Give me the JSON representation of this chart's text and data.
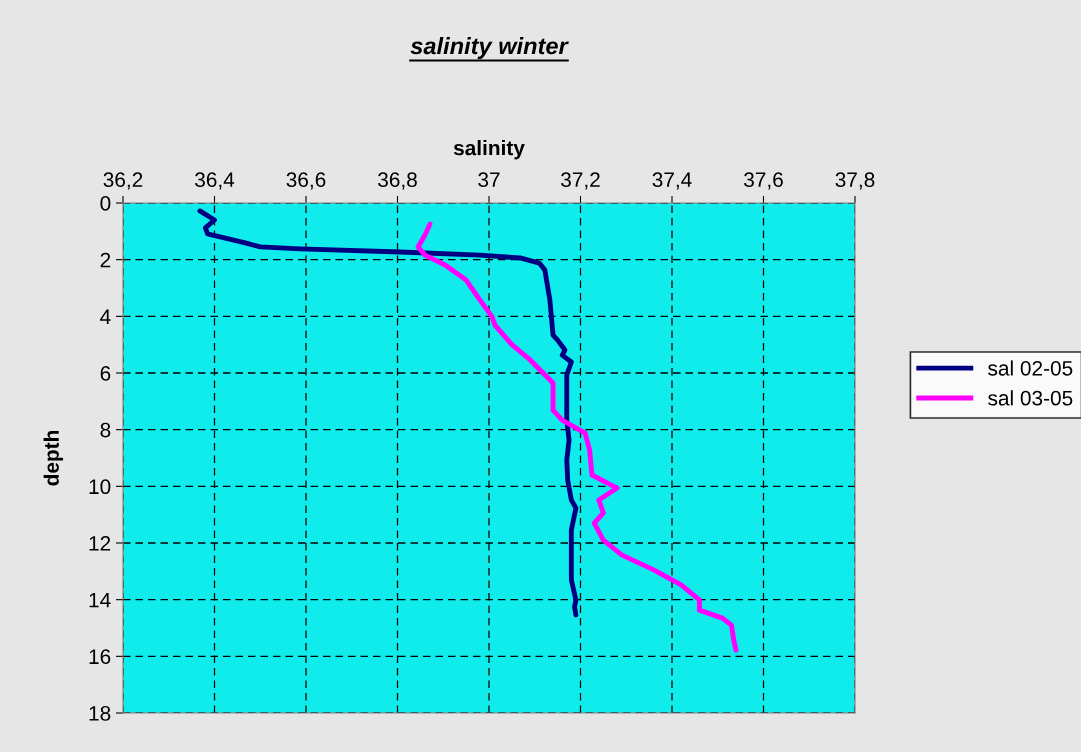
{
  "chart_data": {
    "type": "line",
    "title": "salinity winter",
    "xlabel": "salinity",
    "ylabel": "depth",
    "xlim": [
      36.2,
      37.8
    ],
    "xticks": [
      {
        "value": 36.2,
        "label": "36,2"
      },
      {
        "value": 36.4,
        "label": "36,4"
      },
      {
        "value": 36.6,
        "label": "36,6"
      },
      {
        "value": 36.8,
        "label": "36,8"
      },
      {
        "value": 37,
        "label": "37"
      },
      {
        "value": 37.2,
        "label": "37,2"
      },
      {
        "value": 37.4,
        "label": "37,4"
      },
      {
        "value": 37.6,
        "label": "37,6"
      },
      {
        "value": 37.8,
        "label": "37,8"
      }
    ],
    "ylim": [
      18,
      0
    ],
    "yticks": [
      0,
      2,
      4,
      6,
      8,
      10,
      12,
      14,
      16,
      18
    ],
    "grid": true,
    "legend": "right",
    "marker": "none",
    "line_style": "solid",
    "series": [
      {
        "name": "sal 02-05",
        "color": "#000080",
        "x": [
          36.368,
          36.4,
          36.38,
          36.385,
          36.467,
          36.5,
          36.587,
          36.806,
          36.98,
          37.068,
          37.11,
          37.122,
          37.133,
          37.14,
          37.15,
          37.166,
          37.16,
          37.18,
          37.17,
          37.17,
          37.175,
          37.17,
          37.172,
          37.18,
          37.19,
          37.18,
          37.18,
          37.18,
          37.19,
          37.187,
          37.19
        ],
        "values": [
          0.28,
          0.6,
          0.88,
          1.09,
          1.41,
          1.55,
          1.62,
          1.73,
          1.84,
          1.94,
          2.12,
          2.36,
          3.42,
          4.66,
          4.84,
          5.19,
          5.37,
          5.61,
          6.07,
          7.66,
          8.37,
          9.07,
          9.78,
          10.48,
          10.77,
          11.54,
          12.6,
          13.3,
          14.01,
          14.26,
          14.54
        ]
      },
      {
        "name": "sal 03-05",
        "color": "#ff00ff",
        "x": [
          36.871,
          36.86,
          36.845,
          36.86,
          36.904,
          36.95,
          36.98,
          37.007,
          37.013,
          37.05,
          37.09,
          37.14,
          37.14,
          37.14,
          37.16,
          37.21,
          37.22,
          37.225,
          37.28,
          37.24,
          37.25,
          37.23,
          37.25,
          37.29,
          37.36,
          37.42,
          37.46,
          37.46,
          37.51,
          37.53,
          37.535,
          37.54
        ],
        "values": [
          0.74,
          1.13,
          1.55,
          1.84,
          2.19,
          2.72,
          3.42,
          4.02,
          4.31,
          5.0,
          5.54,
          6.35,
          6.95,
          7.31,
          7.66,
          8.12,
          8.72,
          9.6,
          10.06,
          10.48,
          10.94,
          11.3,
          11.9,
          12.42,
          12.95,
          13.48,
          14.01,
          14.37,
          14.65,
          14.9,
          15.43,
          15.78
        ]
      }
    ]
  }
}
